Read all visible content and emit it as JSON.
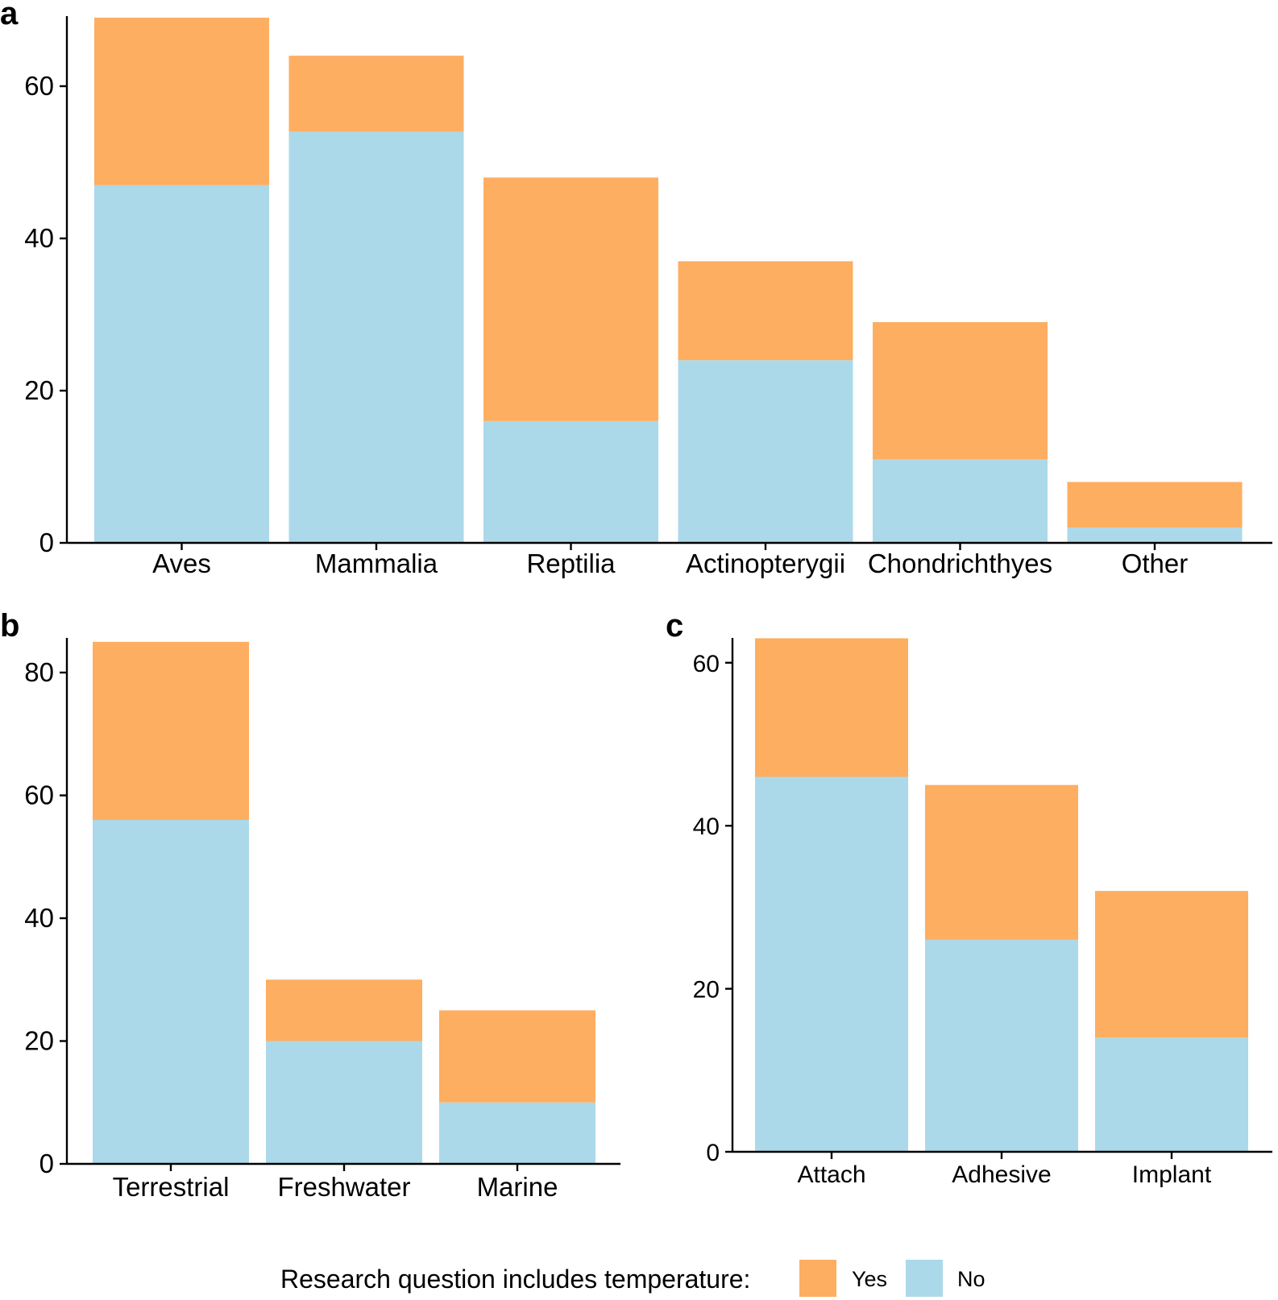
{
  "legend": {
    "title": "Research question includes temperature:",
    "items": [
      {
        "label": "Yes",
        "color": "#FDAE61"
      },
      {
        "label": "No",
        "color": "#ABD9E9"
      }
    ]
  },
  "chart_data": [
    {
      "panel": "a",
      "type": "bar",
      "stacked": true,
      "categories": [
        "Aves",
        "Mammalia",
        "Reptilia",
        "Actinopterygii",
        "Chondrichthyes",
        "Other"
      ],
      "series": [
        {
          "name": "No",
          "color": "#ABD9E9",
          "values": [
            47,
            54,
            16,
            24,
            11,
            2
          ]
        },
        {
          "name": "Yes",
          "color": "#FDAE61",
          "values": [
            22,
            10,
            32,
            13,
            18,
            6
          ]
        }
      ],
      "yticks": [
        "0",
        "20",
        "40",
        "60"
      ],
      "ylim": [
        0,
        69
      ],
      "title": "",
      "xlabel": "",
      "ylabel": ""
    },
    {
      "panel": "b",
      "type": "bar",
      "stacked": true,
      "categories": [
        "Terrestrial",
        "Freshwater",
        "Marine"
      ],
      "series": [
        {
          "name": "No",
          "color": "#ABD9E9",
          "values": [
            56,
            20,
            10
          ]
        },
        {
          "name": "Yes",
          "color": "#FDAE61",
          "values": [
            29,
            10,
            15
          ]
        }
      ],
      "yticks": [
        "0",
        "20",
        "40",
        "60",
        "80"
      ],
      "ylim": [
        0,
        85
      ],
      "title": "",
      "xlabel": "",
      "ylabel": ""
    },
    {
      "panel": "c",
      "type": "bar",
      "stacked": true,
      "categories": [
        "Attach",
        "Adhesive",
        "Implant"
      ],
      "series": [
        {
          "name": "No",
          "color": "#ABD9E9",
          "values": [
            46,
            26,
            14
          ]
        },
        {
          "name": "Yes",
          "color": "#FDAE61",
          "values": [
            17,
            19,
            18
          ]
        }
      ],
      "yticks": [
        "0",
        "20",
        "40",
        "60"
      ],
      "ylim": [
        0,
        63
      ],
      "title": "",
      "xlabel": "",
      "ylabel": ""
    }
  ]
}
